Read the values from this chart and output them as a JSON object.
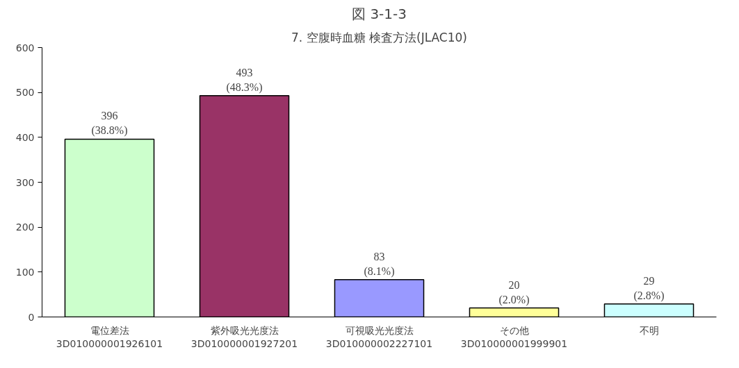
{
  "chart_data": {
    "type": "bar",
    "title": "7. 空腹時血糖 検査方法(JLAC10)",
    "annotations": [
      "図 3-1-3"
    ],
    "categories": [
      "電位差法\n3D010000001926101",
      "紫外吸光光度法\n3D010000001927201",
      "可視吸光光度法\n3D010000002227101",
      "その他\n3D010000001999901",
      "不明"
    ],
    "values": [
      396,
      493,
      83,
      20,
      29
    ],
    "colors": [
      "#ccffcc",
      "#993366",
      "#9999ff",
      "#ffff99",
      "#ccffff"
    ],
    "value_labels": [
      "396\n(38.8%)",
      "493\n(48.3%)",
      "83\n(8.1%)",
      "20\n(2.0%)",
      "29\n(2.8%)"
    ],
    "ylim": [
      0,
      600
    ],
    "yticks": [
      0,
      100,
      200,
      300,
      400,
      500,
      600
    ],
    "grid": false
  }
}
